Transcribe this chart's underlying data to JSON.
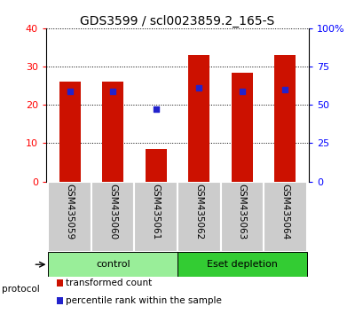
{
  "title": "GDS3599 / scl0023859.2_165-S",
  "samples": [
    "GSM435059",
    "GSM435060",
    "GSM435061",
    "GSM435062",
    "GSM435063",
    "GSM435064"
  ],
  "transformed_counts": [
    26.0,
    26.0,
    8.5,
    33.0,
    28.5,
    33.0
  ],
  "percentile_ranks_pct": [
    59.0,
    59.0,
    47.0,
    61.0,
    59.0,
    60.0
  ],
  "ylim_left": [
    0,
    40
  ],
  "ylim_right": [
    0,
    100
  ],
  "yticks_left": [
    0,
    10,
    20,
    30,
    40
  ],
  "yticks_right": [
    0,
    25,
    50,
    75,
    100
  ],
  "yticklabels_right": [
    "0",
    "25",
    "50",
    "75",
    "100%"
  ],
  "bar_color": "#cc1100",
  "dot_color": "#2222cc",
  "protocol_groups": [
    {
      "label": "control",
      "n": 3,
      "color": "#99ee99"
    },
    {
      "label": "Eset depletion",
      "n": 3,
      "color": "#33cc33"
    }
  ],
  "protocol_label": "protocol",
  "legend_items": [
    {
      "color": "#cc1100",
      "label": "transformed count"
    },
    {
      "color": "#2222cc",
      "label": "percentile rank within the sample"
    }
  ],
  "bar_width": 0.5,
  "tick_label_area_color": "#cccccc",
  "title_fontsize": 10,
  "tick_fontsize": 8,
  "label_fontsize": 7.5
}
